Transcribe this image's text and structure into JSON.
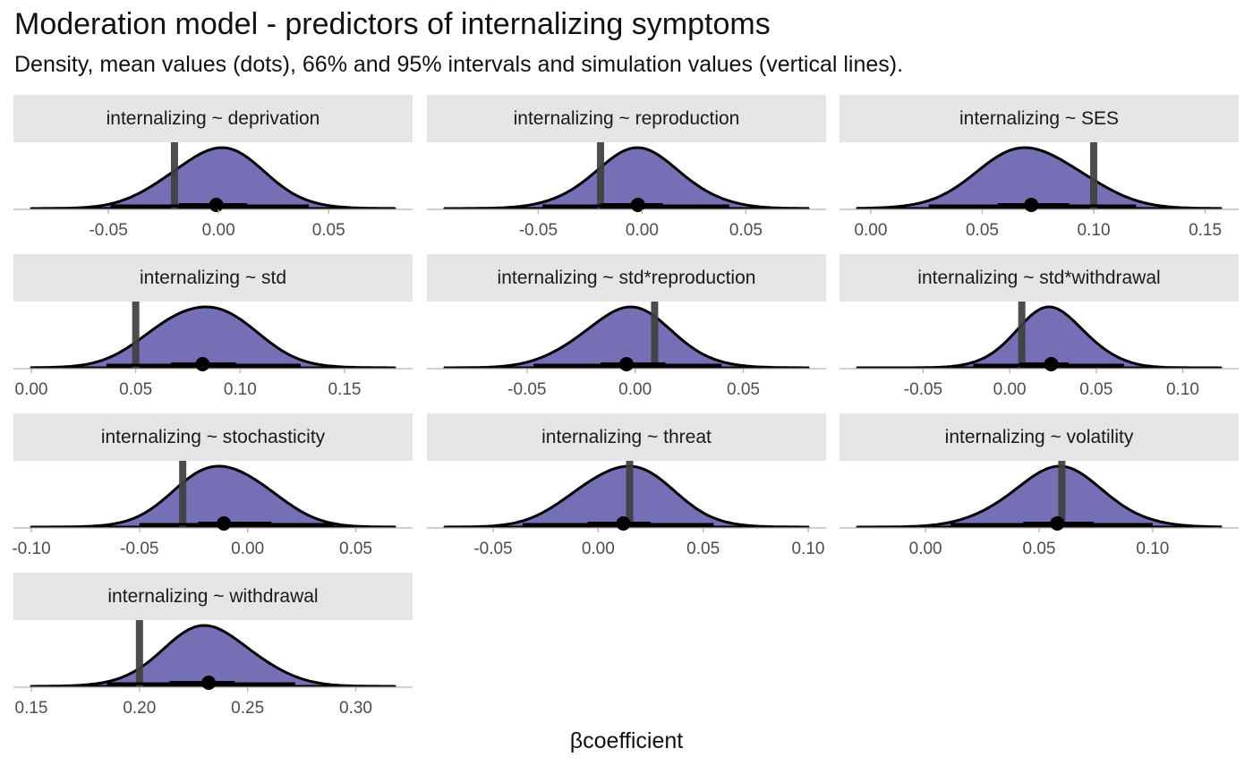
{
  "title": "Moderation model - predictors of internalizing symptoms",
  "subtitle": "Density, mean values (dots), 66% and 95% intervals and  simulation values (vertical lines).",
  "x_axis_title": "βcoefficient",
  "colors": {
    "fill": "#7570b6",
    "outline": "#000000",
    "sim_line": "#404040",
    "strip": "#e5e5e5",
    "axis": "#b3b3b3"
  },
  "chart_data": [
    {
      "type": "area",
      "facet": "internalizing ~ deprivation",
      "xlim": [
        -0.085,
        0.08
      ],
      "ticks": [
        -0.05,
        0.0,
        0.05
      ],
      "tick_labels": [
        "-0.05",
        "0.00",
        "0.05"
      ],
      "mean": -0.001,
      "sd": 0.021,
      "ci66": [
        -0.018,
        0.013
      ],
      "ci95": [
        -0.049,
        0.041
      ],
      "sim": -0.02
    },
    {
      "type": "area",
      "facet": "internalizing ~ reproduction",
      "xlim": [
        -0.095,
        0.08
      ],
      "ticks": [
        -0.05,
        0.0,
        0.05
      ],
      "tick_labels": [
        "-0.05",
        "0.00",
        "0.05"
      ],
      "mean": -0.002,
      "sd": 0.022,
      "ci66": [
        -0.02,
        0.01
      ],
      "ci95": [
        -0.048,
        0.042
      ],
      "sim": -0.02
    },
    {
      "type": "area",
      "facet": "internalizing ~ SES",
      "xlim": [
        -0.006,
        0.157
      ],
      "ticks": [
        0.0,
        0.05,
        0.1,
        0.15
      ],
      "tick_labels": [
        "0.00",
        "0.05",
        "0.10",
        "0.15"
      ],
      "mean": 0.072,
      "sd": 0.023,
      "ci66": [
        0.057,
        0.089
      ],
      "ci95": [
        0.026,
        0.119
      ],
      "sim": 0.1
    },
    {
      "type": "area",
      "facet": "internalizing ~ std",
      "xlim": [
        0.0,
        0.174
      ],
      "ticks": [
        0.0,
        0.05,
        0.1,
        0.15
      ],
      "tick_labels": [
        "0.00",
        "0.05",
        "0.10",
        "0.15"
      ],
      "mean": 0.082,
      "sd": 0.023,
      "ci66": [
        0.067,
        0.098
      ],
      "ci95": [
        0.036,
        0.129
      ],
      "sim": 0.05
    },
    {
      "type": "area",
      "facet": "internalizing ~ std*reproduction",
      "xlim": [
        -0.088,
        0.08
      ],
      "ticks": [
        -0.05,
        0.0,
        0.05
      ],
      "tick_labels": [
        "-0.05",
        "0.00",
        "0.05"
      ],
      "mean": -0.004,
      "sd": 0.021,
      "ci66": [
        -0.016,
        0.014
      ],
      "ci95": [
        -0.047,
        0.04
      ],
      "sim": 0.009
    },
    {
      "type": "area",
      "facet": "internalizing ~ std*withdrawal",
      "xlim": [
        -0.088,
        0.122
      ],
      "ticks": [
        -0.05,
        0.0,
        0.05,
        0.1
      ],
      "tick_labels": [
        "-0.05",
        "0.00",
        "0.05",
        "0.10"
      ],
      "mean": 0.024,
      "sd": 0.021,
      "ci66": [
        0.006,
        0.034
      ],
      "ci95": [
        -0.021,
        0.066
      ],
      "sim": 0.007
    },
    {
      "type": "area",
      "facet": "internalizing ~ stochasticity",
      "xlim": [
        -0.1,
        0.068
      ],
      "ticks": [
        -0.1,
        -0.05,
        0.0,
        0.05
      ],
      "tick_labels": [
        "-0.10",
        "-0.05",
        "0.00",
        "0.05"
      ],
      "mean": -0.011,
      "sd": 0.021,
      "ci66": [
        -0.023,
        0.011
      ],
      "ci95": [
        -0.05,
        0.04
      ],
      "sim": -0.03
    },
    {
      "type": "area",
      "facet": "internalizing ~ threat",
      "xlim": [
        -0.073,
        0.1
      ],
      "ticks": [
        -0.05,
        0.0,
        0.05,
        0.1
      ],
      "tick_labels": [
        "-0.05",
        "0.00",
        "0.05",
        "0.10"
      ],
      "mean": 0.012,
      "sd": 0.022,
      "ci66": [
        -0.005,
        0.025
      ],
      "ci95": [
        -0.036,
        0.055
      ],
      "sim": 0.015
    },
    {
      "type": "area",
      "facet": "internalizing ~ volatility",
      "xlim": [
        -0.03,
        0.13
      ],
      "ticks": [
        0.0,
        0.05,
        0.1
      ],
      "tick_labels": [
        "0.00",
        "0.05",
        "0.10"
      ],
      "mean": 0.058,
      "sd": 0.021,
      "ci66": [
        0.043,
        0.074
      ],
      "ci95": [
        0.011,
        0.1
      ],
      "sim": 0.06
    },
    {
      "type": "area",
      "facet": "internalizing ~ withdrawal",
      "xlim": [
        0.15,
        0.318
      ],
      "ticks": [
        0.15,
        0.2,
        0.25,
        0.3
      ],
      "tick_labels": [
        "0.15",
        "0.20",
        "0.25",
        "0.30"
      ],
      "mean": 0.232,
      "sd": 0.021,
      "ci66": [
        0.214,
        0.244
      ],
      "ci95": [
        0.185,
        0.272
      ],
      "sim": 0.2
    }
  ]
}
